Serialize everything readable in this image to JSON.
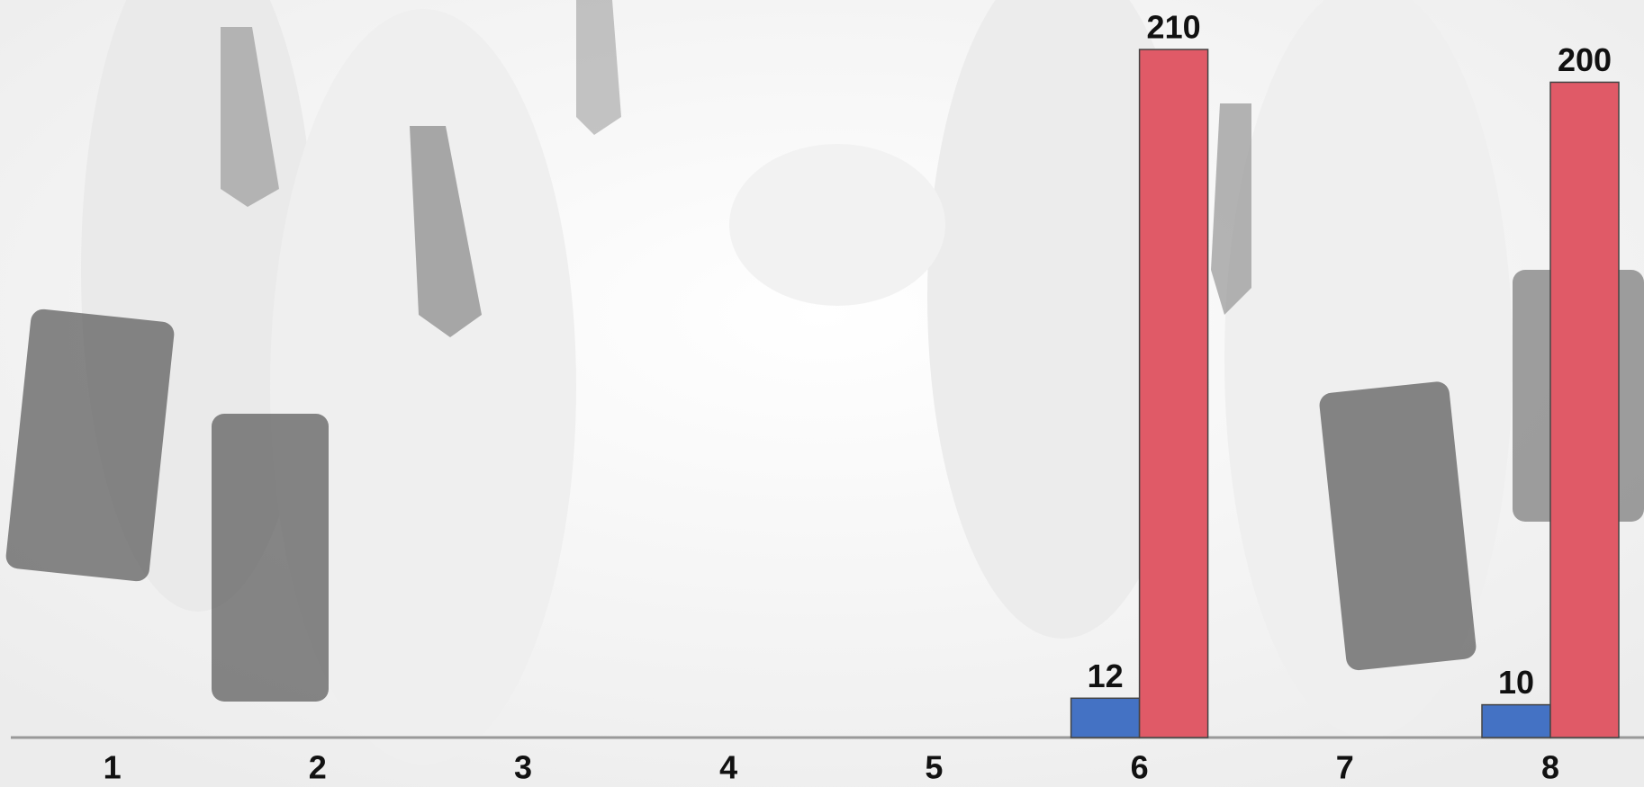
{
  "chart_data": {
    "type": "bar",
    "categories": [
      "1",
      "2",
      "3",
      "4",
      "5",
      "6",
      "7",
      "8"
    ],
    "series": [
      {
        "color": "#4472c4",
        "values": [
          null,
          null,
          null,
          null,
          null,
          12,
          null,
          10
        ]
      },
      {
        "color": "#e05a67",
        "values": [
          null,
          null,
          null,
          null,
          null,
          210,
          null,
          200
        ]
      }
    ],
    "ylim": [
      0,
      210
    ]
  }
}
